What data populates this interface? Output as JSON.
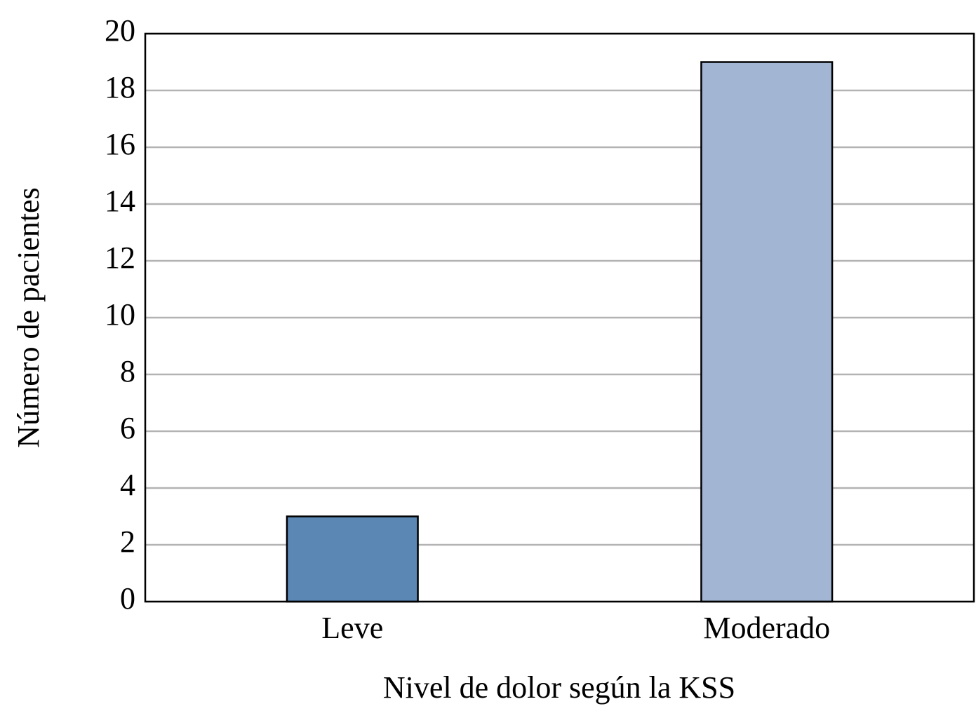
{
  "chart_data": {
    "type": "bar",
    "x_label": "Nivel de dolor según la KSS",
    "y_label": "Número de pacientes",
    "categories": [
      "Leve",
      "Moderado"
    ],
    "values": [
      3,
      19
    ],
    "colors": [
      "#5b87b5",
      "#a2b6d3"
    ],
    "ylim": [
      0,
      20
    ],
    "yticks": [
      0,
      2,
      4,
      6,
      8,
      10,
      12,
      14,
      16,
      18,
      20
    ],
    "grid": true
  }
}
